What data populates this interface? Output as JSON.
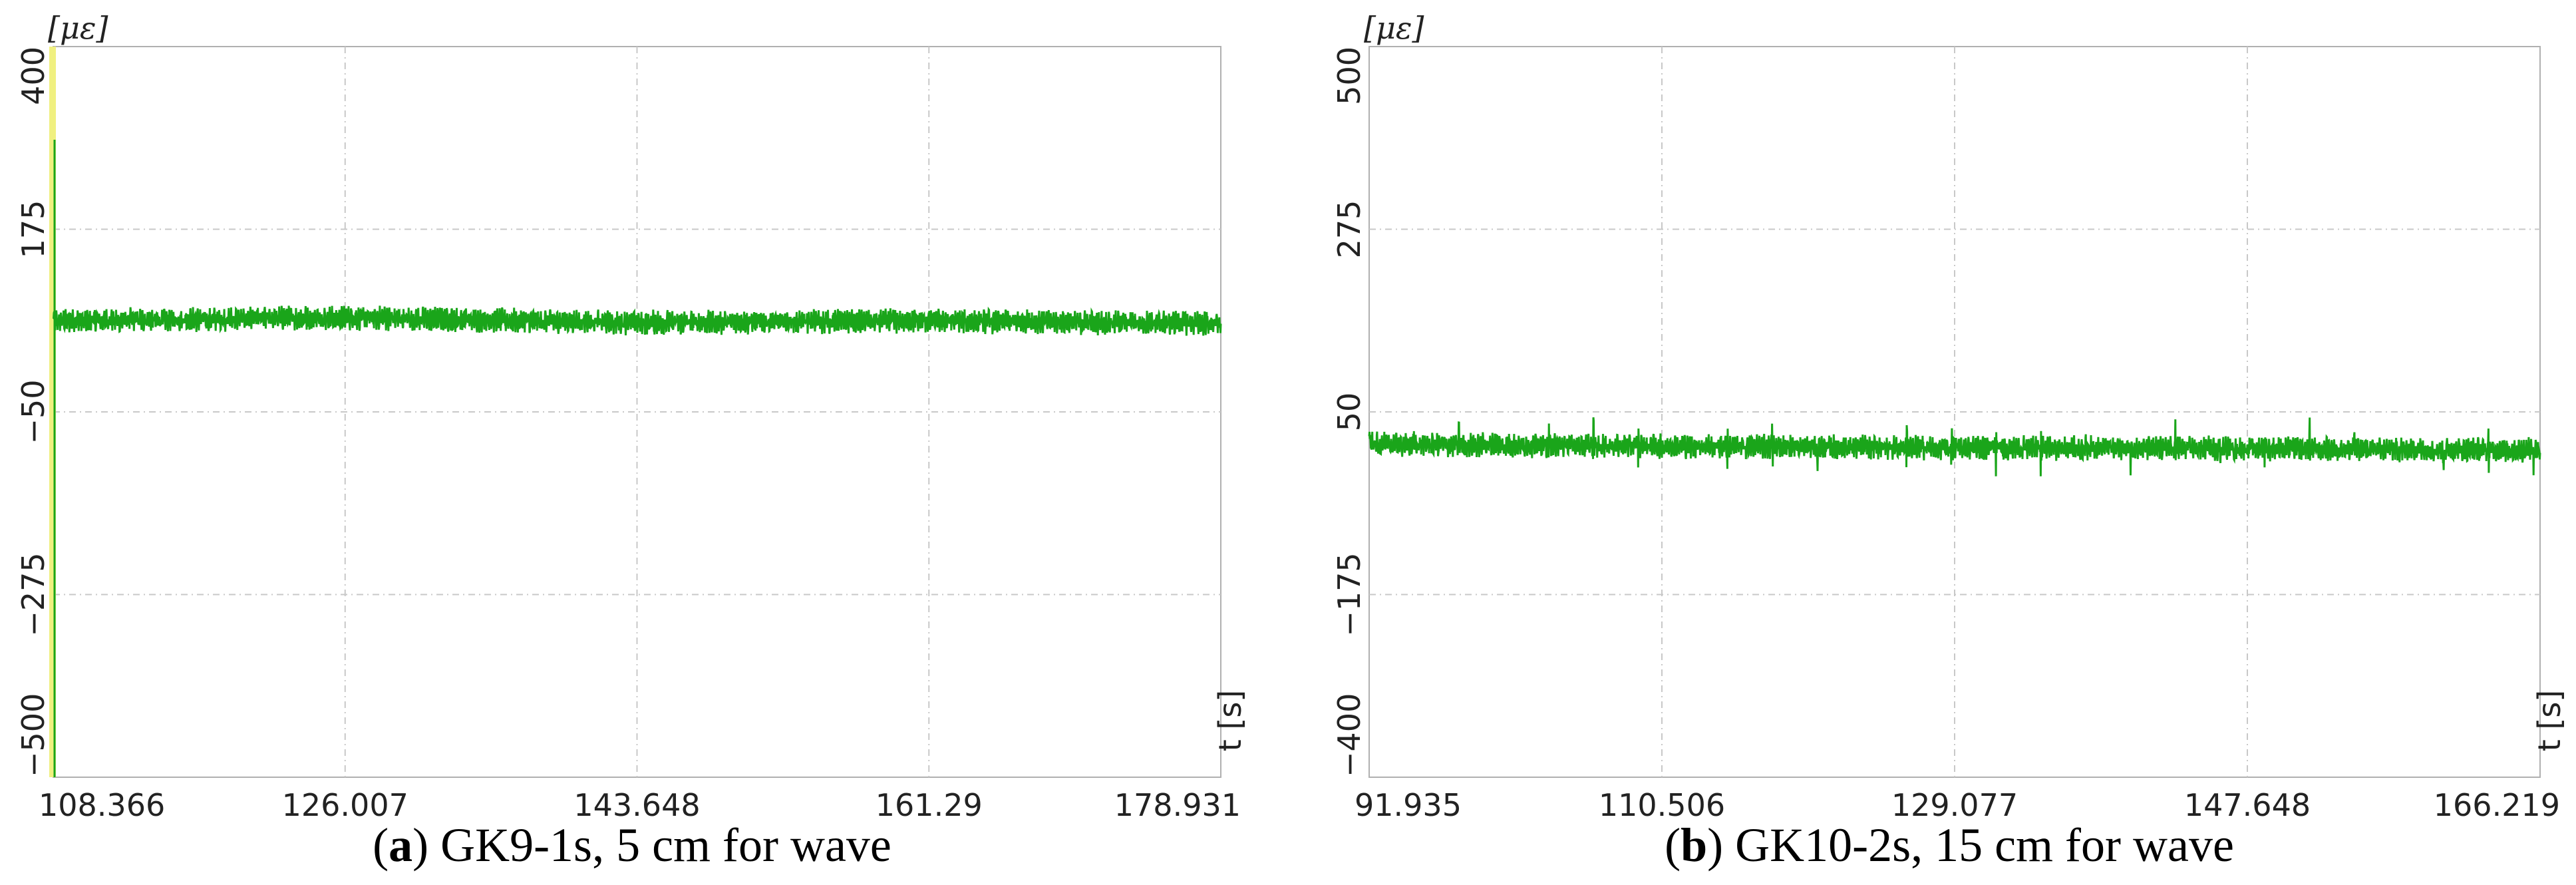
{
  "chart_data": [
    {
      "type": "line",
      "unit_label": "[με]",
      "xlabel": "t [s]",
      "x_ticks": [
        "108.366",
        "126.007",
        "143.648",
        "161.29",
        "178.931"
      ],
      "xlim": [
        108.366,
        178.931
      ],
      "y_ticks": [
        "400",
        "175",
        "-50",
        "-275",
        "-500"
      ],
      "ylim": [
        -500,
        400
      ],
      "grid": true,
      "series": [
        {
          "color": "#1aa51a",
          "mean": 62,
          "band": 14,
          "x": [
            108.366,
            126.007,
            143.648,
            161.29,
            178.931
          ],
          "y": [
            62,
            66,
            60,
            62,
            59
          ]
        }
      ],
      "marker_color": "#f0f080",
      "caption_letter": "a",
      "caption_text": "GK9-1s, 5 cm for wave"
    },
    {
      "type": "line",
      "unit_label": "[με]",
      "xlabel": "t [s]",
      "x_ticks": [
        "91.935",
        "110.506",
        "129.077",
        "147.648",
        "166.219"
      ],
      "xlim": [
        91.935,
        166.219
      ],
      "y_ticks": [
        "500",
        "275",
        "50",
        "-175",
        "-400"
      ],
      "ylim": [
        -400,
        500
      ],
      "grid": true,
      "series": [
        {
          "color": "#1aa51a",
          "mean": 8,
          "band": 14,
          "x": [
            91.935,
            110.506,
            129.077,
            147.648,
            166.219
          ],
          "y": [
            10,
            8,
            6,
            5,
            3
          ]
        }
      ],
      "caption_letter": "b",
      "caption_text": "GK10-2s, 15 cm for wave"
    }
  ]
}
